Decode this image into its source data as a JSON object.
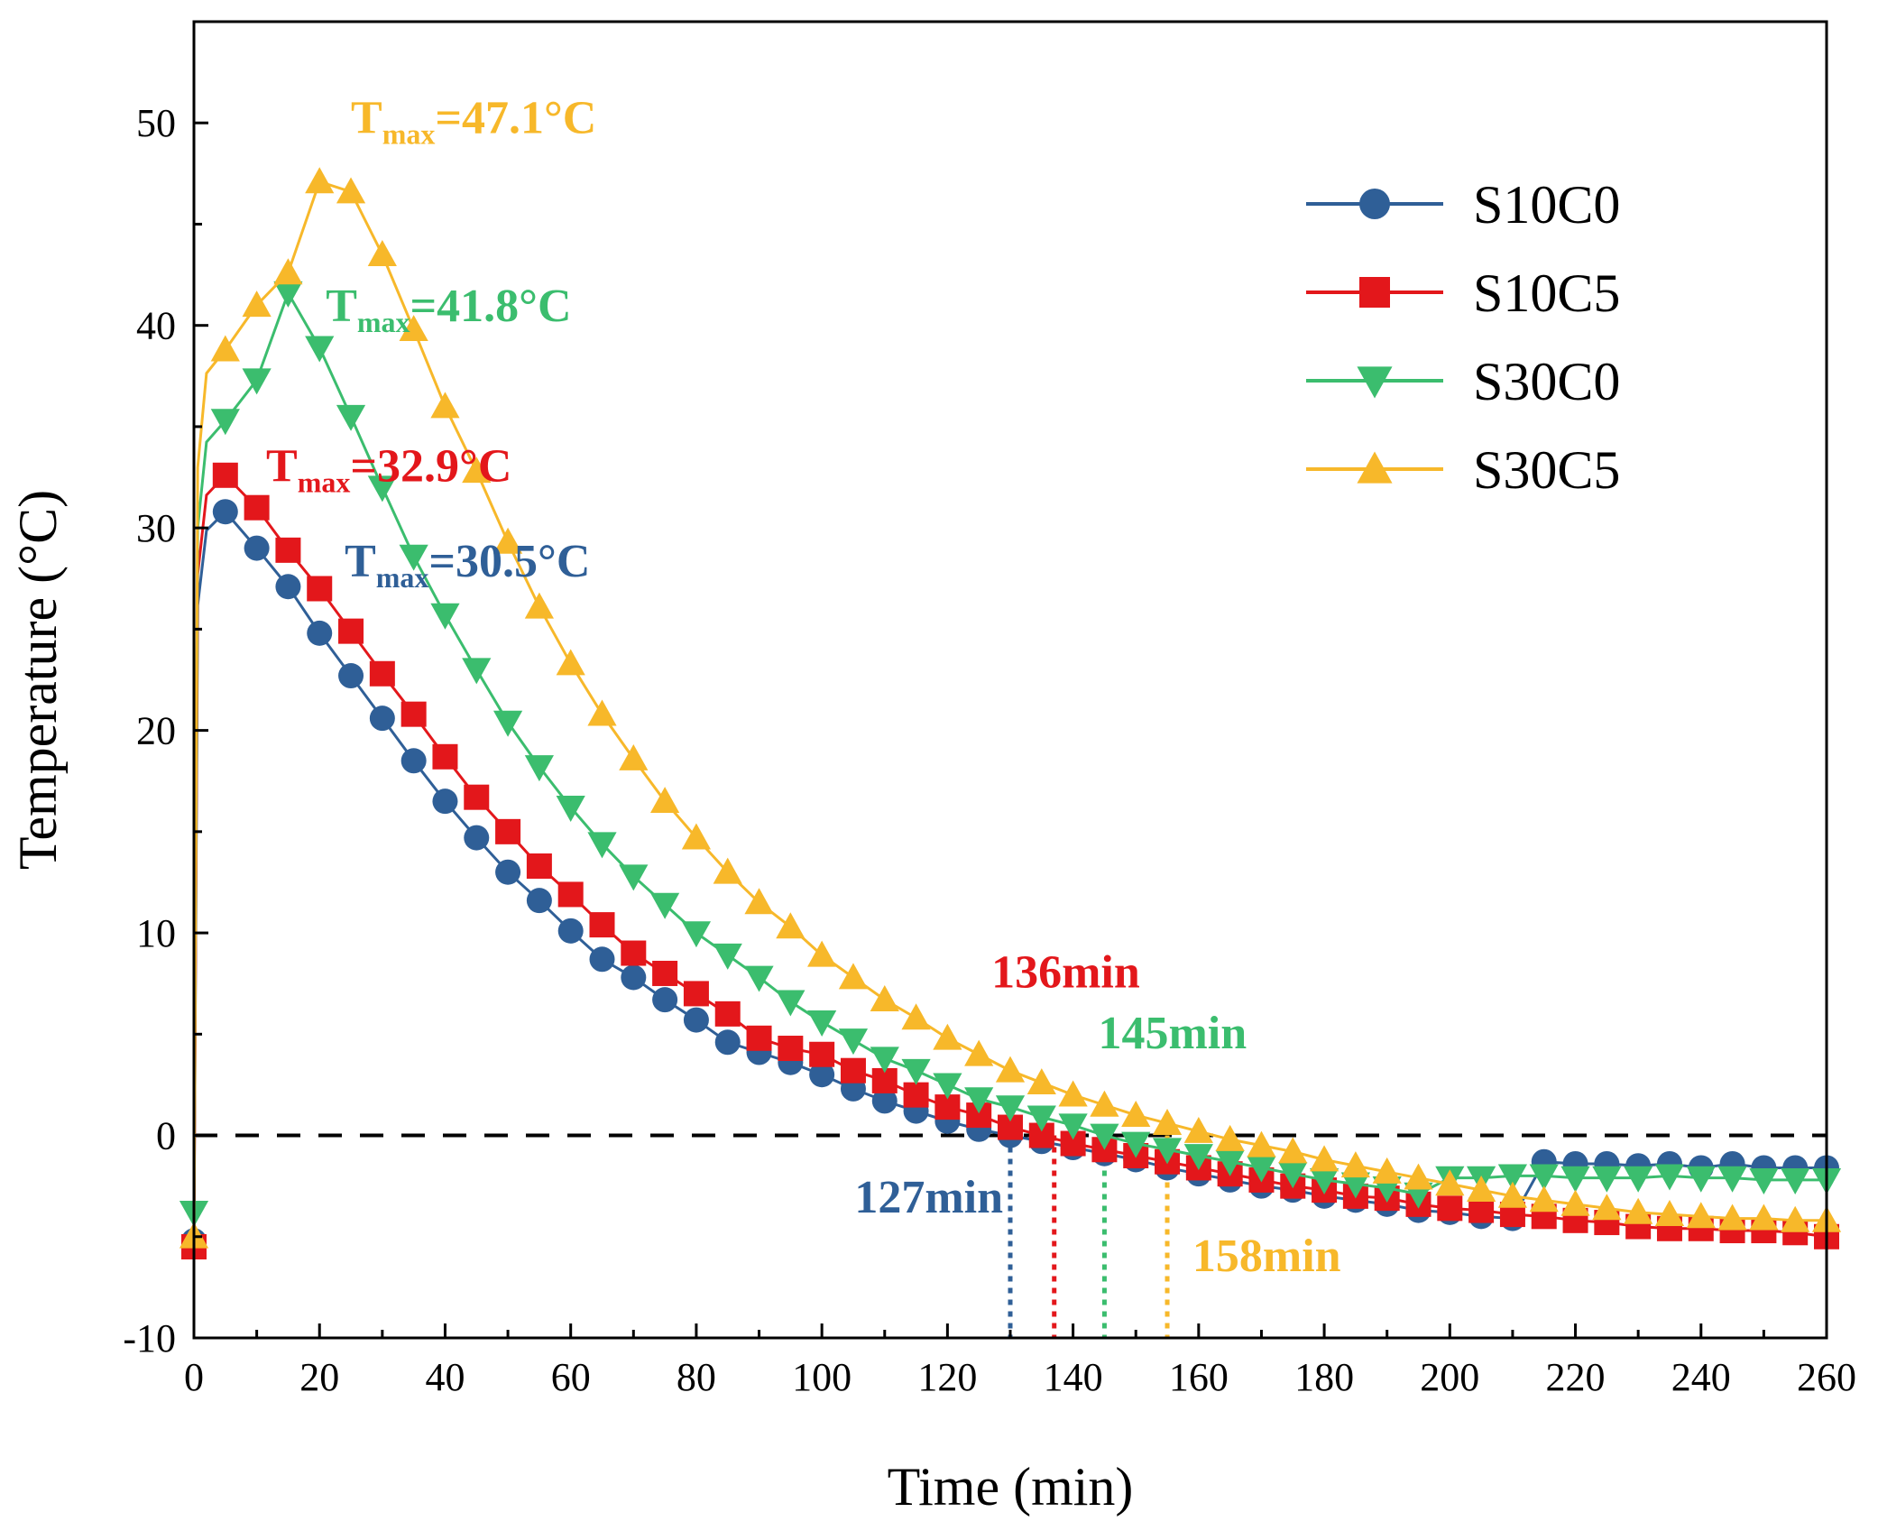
{
  "chart_data": {
    "type": "line",
    "xlabel": "Time (min)",
    "ylabel": "Temperature (°C)",
    "xlim": [
      0,
      260
    ],
    "ylim": [
      -10,
      55
    ],
    "xticks": [
      0,
      20,
      40,
      60,
      80,
      100,
      120,
      140,
      160,
      180,
      200,
      220,
      240,
      260
    ],
    "yticks": [
      -10,
      0,
      10,
      20,
      30,
      40,
      50
    ],
    "zero_line": 0,
    "legend_position": "top-right",
    "series": [
      {
        "name": "S10C0",
        "color": "#2f5f97",
        "marker": "circle",
        "x": [
          0,
          5,
          10,
          15,
          20,
          25,
          30,
          35,
          40,
          45,
          50,
          55,
          60,
          65,
          70,
          75,
          80,
          85,
          90,
          95,
          100,
          105,
          110,
          115,
          120,
          125,
          130,
          135,
          140,
          145,
          150,
          155,
          160,
          165,
          170,
          175,
          180,
          185,
          190,
          195,
          200,
          205,
          210,
          215,
          220,
          225,
          230,
          235,
          240,
          245,
          250,
          255,
          260
        ],
        "values": [
          -5.2,
          30.8,
          29.0,
          27.1,
          24.8,
          22.7,
          20.6,
          18.5,
          16.5,
          14.7,
          13.0,
          11.6,
          10.1,
          8.7,
          7.8,
          6.7,
          5.7,
          4.6,
          4.1,
          3.6,
          3.0,
          2.3,
          1.7,
          1.2,
          0.7,
          0.3,
          0.0,
          -0.3,
          -0.6,
          -0.9,
          -1.2,
          -1.6,
          -1.9,
          -2.2,
          -2.5,
          -2.7,
          -3.0,
          -3.2,
          -3.4,
          -3.7,
          -3.8,
          -4.0,
          -4.1,
          -1.3,
          -1.4,
          -1.4,
          -1.5,
          -1.4,
          -1.6,
          -1.4,
          -1.6,
          -1.6,
          -1.6
        ]
      },
      {
        "name": "S10C5",
        "color": "#e3171b",
        "marker": "square",
        "x": [
          0,
          5,
          10,
          15,
          20,
          25,
          30,
          35,
          40,
          45,
          50,
          55,
          60,
          65,
          70,
          75,
          80,
          85,
          90,
          95,
          100,
          105,
          110,
          115,
          120,
          125,
          130,
          135,
          140,
          145,
          150,
          155,
          160,
          165,
          170,
          175,
          180,
          185,
          190,
          195,
          200,
          205,
          210,
          215,
          220,
          225,
          230,
          235,
          240,
          245,
          250,
          255,
          260
        ],
        "values": [
          -5.5,
          32.6,
          31.0,
          28.9,
          27.0,
          24.9,
          22.8,
          20.8,
          18.7,
          16.7,
          15.0,
          13.3,
          11.9,
          10.4,
          9.0,
          8.0,
          7.0,
          6.0,
          4.8,
          4.3,
          4.0,
          3.2,
          2.7,
          2.0,
          1.4,
          1.0,
          0.4,
          0.0,
          -0.4,
          -0.7,
          -1.0,
          -1.3,
          -1.6,
          -1.9,
          -2.2,
          -2.5,
          -2.7,
          -3.0,
          -3.1,
          -3.4,
          -3.6,
          -3.7,
          -3.9,
          -4.0,
          -4.2,
          -4.3,
          -4.5,
          -4.6,
          -4.6,
          -4.7,
          -4.7,
          -4.8,
          -5.0
        ]
      },
      {
        "name": "S30C0",
        "color": "#3bbd6e",
        "marker": "triangle-down",
        "x": [
          0,
          5,
          10,
          15,
          20,
          25,
          30,
          35,
          40,
          45,
          50,
          55,
          60,
          65,
          70,
          75,
          80,
          85,
          90,
          95,
          100,
          105,
          110,
          115,
          120,
          125,
          130,
          135,
          140,
          145,
          150,
          155,
          160,
          165,
          170,
          175,
          180,
          185,
          190,
          195,
          200,
          205,
          210,
          215,
          220,
          225,
          230,
          235,
          240,
          245,
          250,
          255,
          260
        ],
        "values": [
          -3.8,
          35.3,
          37.3,
          41.6,
          38.9,
          35.5,
          32.0,
          28.6,
          25.7,
          23.0,
          20.4,
          18.2,
          16.2,
          14.4,
          12.8,
          11.4,
          10.0,
          8.9,
          7.8,
          6.6,
          5.6,
          4.7,
          3.8,
          3.2,
          2.5,
          1.8,
          1.4,
          0.9,
          0.5,
          0.0,
          -0.4,
          -0.7,
          -1.0,
          -1.3,
          -1.6,
          -1.9,
          -2.2,
          -2.4,
          -2.6,
          -2.9,
          -2.1,
          -2.1,
          -2.0,
          -2.0,
          -2.1,
          -2.1,
          -2.1,
          -2.0,
          -2.1,
          -2.1,
          -2.2,
          -2.2,
          -2.2
        ]
      },
      {
        "name": "S30C5",
        "color": "#f7b82a",
        "marker": "triangle-up",
        "x": [
          0,
          5,
          10,
          15,
          20,
          25,
          30,
          35,
          40,
          45,
          50,
          55,
          60,
          65,
          70,
          75,
          80,
          85,
          90,
          95,
          100,
          105,
          110,
          115,
          120,
          125,
          130,
          135,
          140,
          145,
          150,
          155,
          160,
          165,
          170,
          175,
          180,
          185,
          190,
          195,
          200,
          205,
          210,
          215,
          220,
          225,
          230,
          235,
          240,
          245,
          250,
          255,
          260
        ],
        "values": [
          -5.0,
          38.8,
          41.0,
          42.6,
          47.1,
          46.6,
          43.5,
          39.8,
          36.0,
          32.8,
          29.3,
          26.1,
          23.3,
          20.8,
          18.6,
          16.5,
          14.7,
          13.0,
          11.5,
          10.3,
          8.9,
          7.8,
          6.7,
          5.8,
          4.8,
          4.0,
          3.2,
          2.6,
          2.0,
          1.5,
          1.0,
          0.6,
          0.2,
          -0.2,
          -0.5,
          -0.8,
          -1.2,
          -1.5,
          -1.8,
          -2.1,
          -2.4,
          -2.7,
          -3.0,
          -3.2,
          -3.4,
          -3.6,
          -3.8,
          -3.9,
          -4.0,
          -4.1,
          -4.1,
          -4.2,
          -4.2
        ]
      }
    ],
    "annotations": [
      {
        "id": "tmax-s30c5",
        "main": "T",
        "sub": "max",
        "rest": "=47.1°C",
        "color": "#f7b82a",
        "x": 25,
        "y": 49.5
      },
      {
        "id": "tmax-s30c0",
        "main": "T",
        "sub": "max",
        "rest": "=41.8°C",
        "color": "#3bbd6e",
        "x": 21,
        "y": 40.2
      },
      {
        "id": "tmax-s10c5",
        "main": "T",
        "sub": "max",
        "rest": "=32.9°C",
        "color": "#e3171b",
        "x": 11.5,
        "y": 32.3
      },
      {
        "id": "tmax-s10c0",
        "main": "T",
        "sub": "max",
        "rest": "=30.5°C",
        "color": "#2f5f97",
        "x": 24,
        "y": 27.6
      }
    ],
    "crossings": [
      {
        "id": "cross-127",
        "label": "127min",
        "x": 130,
        "color": "#2f5f97",
        "label_x": 130,
        "label_y": -3.8,
        "anchor": "end"
      },
      {
        "id": "cross-136",
        "label": "136min",
        "x": 137,
        "color": "#e3171b",
        "label_x": 127,
        "label_y": 7.3,
        "anchor": "start"
      },
      {
        "id": "cross-145",
        "label": "145min",
        "x": 145,
        "color": "#3bbd6e",
        "label_x": 144,
        "label_y": 4.3,
        "anchor": "start"
      },
      {
        "id": "cross-158",
        "label": "158min",
        "x": 155,
        "color": "#f7b82a",
        "label_x": 159,
        "label_y": -6.7,
        "anchor": "start"
      }
    ]
  }
}
